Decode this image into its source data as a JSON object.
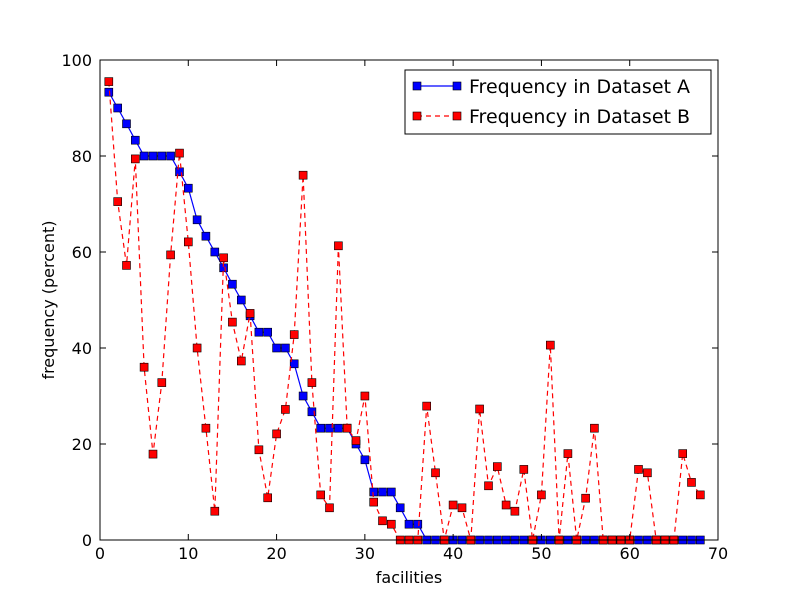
{
  "chart_data": {
    "type": "line",
    "title": "",
    "xlabel": "facilities",
    "ylabel": "frequency (percent)",
    "xlim": [
      0,
      70
    ],
    "ylim": [
      0,
      100
    ],
    "xticks": [
      0,
      10,
      20,
      30,
      40,
      50,
      60,
      70
    ],
    "yticks": [
      0,
      20,
      40,
      60,
      80,
      100
    ],
    "grid": false,
    "legend_position": "top-right",
    "x": [
      1,
      2,
      3,
      4,
      5,
      6,
      7,
      8,
      9,
      10,
      11,
      12,
      13,
      14,
      15,
      16,
      17,
      18,
      19,
      20,
      21,
      22,
      23,
      24,
      25,
      26,
      27,
      28,
      29,
      30,
      31,
      32,
      33,
      34,
      35,
      36,
      37,
      38,
      39,
      40,
      41,
      42,
      43,
      44,
      45,
      46,
      47,
      48,
      49,
      50,
      51,
      52,
      53,
      54,
      55,
      56,
      57,
      58,
      59,
      60,
      61,
      62,
      63,
      64,
      65,
      66,
      67,
      68
    ],
    "series": [
      {
        "name": "Frequency in Dataset A",
        "color": "#0000ff",
        "linestyle": "solid",
        "marker": "square",
        "values": [
          93.3,
          90,
          86.7,
          83.3,
          80,
          80,
          80,
          80,
          76.7,
          73.3,
          66.7,
          63.3,
          60,
          56.7,
          53.3,
          50,
          46.7,
          43.3,
          43.3,
          40,
          40,
          36.7,
          30,
          26.7,
          23.3,
          23.3,
          23.3,
          23.3,
          20,
          16.7,
          10,
          10,
          10,
          6.7,
          3.3,
          3.3,
          0,
          0,
          0,
          0,
          0,
          0,
          0,
          0,
          0,
          0,
          0,
          0,
          0,
          0,
          0,
          0,
          0,
          0,
          0,
          0,
          0,
          0,
          0,
          0,
          0,
          0,
          0,
          0,
          0,
          0,
          0,
          0
        ]
      },
      {
        "name": "Frequency in Dataset B",
        "color": "#ff0000",
        "linestyle": "dashed",
        "marker": "square",
        "values": [
          95.5,
          70.5,
          57.2,
          79.4,
          36,
          17.9,
          32.8,
          59.4,
          80.6,
          62.1,
          40,
          23.3,
          6,
          58.8,
          45.4,
          37.3,
          47.2,
          18.8,
          8.8,
          22.1,
          27.2,
          42.8,
          76,
          32.8,
          9.4,
          6.7,
          61.3,
          23.3,
          20.7,
          30,
          7.9,
          4,
          3.3,
          0,
          0,
          0,
          27.9,
          14,
          0,
          7.3,
          6.7,
          0,
          27.3,
          11.3,
          15.3,
          7.3,
          6,
          14.7,
          0,
          9.4,
          40.6,
          0,
          18,
          0,
          8.7,
          23.3,
          0,
          0,
          0,
          0,
          14.7,
          14,
          0,
          0,
          0,
          18,
          12,
          9.4
        ]
      }
    ]
  }
}
